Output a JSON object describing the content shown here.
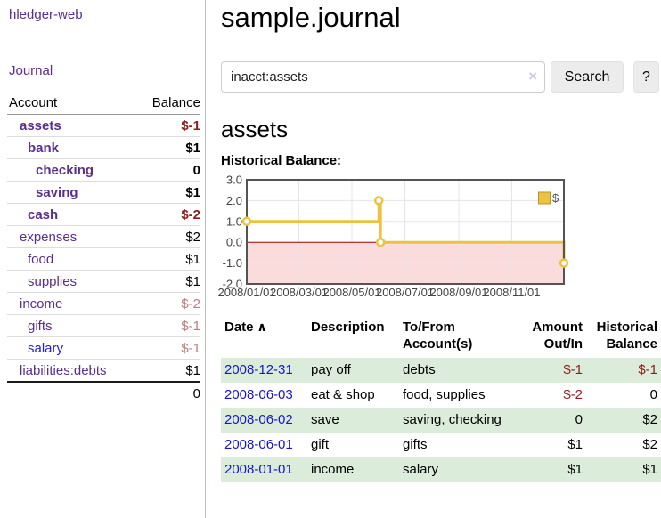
{
  "colors": {
    "link_purple": "#5b2d90",
    "link_blue": "#2222e0",
    "negative_dark": "#8b1e1e",
    "negative_light": "#bb7e7e",
    "row_stripe_green": "#dcecdb",
    "date_link_blue": "#1515cc",
    "chart_series_yellow": "#edc240",
    "chart_negative_band_pink": "#fbdcdc",
    "chart_zero_line_red": "#a40000"
  },
  "sidebar": {
    "brand": "hledger-web",
    "nav": [
      {
        "label": "Journal"
      }
    ],
    "accounts_table": {
      "headers": {
        "account": "Account",
        "balance": "Balance"
      },
      "rows": [
        {
          "account": "assets",
          "indent": 1,
          "bold": true,
          "link": "purple",
          "balance": "$-1",
          "balance_style": "neg-dark"
        },
        {
          "account": "bank",
          "indent": 2,
          "bold": true,
          "link": "purple",
          "balance": "$1",
          "balance_style": "plain"
        },
        {
          "account": "checking",
          "indent": 3,
          "bold": true,
          "link": "purple",
          "balance": "0",
          "balance_style": "plain"
        },
        {
          "account": "saving",
          "indent": 3,
          "bold": true,
          "link": "purple",
          "balance": "$1",
          "balance_style": "plain"
        },
        {
          "account": "cash",
          "indent": 2,
          "bold": true,
          "link": "purple",
          "balance": "$-2",
          "balance_style": "neg-dark"
        },
        {
          "account": "expenses",
          "indent": 1,
          "bold": false,
          "link": "purple",
          "balance": "$2",
          "balance_style": "plain"
        },
        {
          "account": "food",
          "indent": 2,
          "bold": false,
          "link": "purple",
          "balance": "$1",
          "balance_style": "plain"
        },
        {
          "account": "supplies",
          "indent": 2,
          "bold": false,
          "link": "purple",
          "balance": "$1",
          "balance_style": "plain"
        },
        {
          "account": "income",
          "indent": 1,
          "bold": false,
          "link": "purple",
          "balance": "$-2",
          "balance_style": "neg-light"
        },
        {
          "account": "gifts",
          "indent": 2,
          "bold": false,
          "link": "purple",
          "balance": "$-1",
          "balance_style": "neg-light"
        },
        {
          "account": "salary",
          "indent": 2,
          "bold": false,
          "link": "blue",
          "balance": "$-1",
          "balance_style": "neg-light"
        },
        {
          "account": "liabilities:debts",
          "indent": 1,
          "bold": false,
          "link": "purple",
          "balance": "$1",
          "balance_style": "plain"
        }
      ],
      "total": "0"
    }
  },
  "header": {
    "title": "sample.journal"
  },
  "search": {
    "value": "inacct:assets",
    "clear_icon": "×",
    "button_label": "Search",
    "help_label": "?"
  },
  "account_page": {
    "title": "assets",
    "chart_label": "Historical Balance:"
  },
  "chart_data": {
    "type": "line",
    "step": true,
    "title": "Historical Balance:",
    "series": [
      {
        "name": "$",
        "color": "#edc240",
        "points": [
          {
            "date": "2008-01-01",
            "value": 1.0
          },
          {
            "date": "2008-06-01",
            "value": 2.0
          },
          {
            "date": "2008-06-03",
            "value": 0.0
          },
          {
            "date": "2008-12-31",
            "value": -1.0
          }
        ]
      }
    ],
    "xrange": [
      "2008-01-01",
      "2008-12-31"
    ],
    "ylim": [
      -2.0,
      3.0
    ],
    "yticks": [
      3.0,
      2.0,
      1.0,
      0.0,
      -1.0,
      -2.0
    ],
    "xticks": [
      {
        "date": "2008-01-01",
        "label": "2008/01/01"
      },
      {
        "date": "2008-03-01",
        "label": "2008/03/01"
      },
      {
        "date": "2008-05-01",
        "label": "2008/05/01"
      },
      {
        "date": "2008-07-01",
        "label": "2008/07/01"
      },
      {
        "date": "2008-09-01",
        "label": "2008/09/01"
      },
      {
        "date": "2008-11-01",
        "label": "2008/11/01"
      }
    ],
    "legend": {
      "label": "$",
      "position": "top-right"
    },
    "grid": true,
    "negative_band": {
      "from": 0,
      "to": -2,
      "color": "#fbdcdc"
    },
    "zero_line_color": "#a40000"
  },
  "register": {
    "sort_icon": "∧",
    "columns": [
      {
        "line1": "Date",
        "line2": "",
        "align": "left",
        "sorted": true
      },
      {
        "line1": "Description",
        "line2": "",
        "align": "left",
        "sorted": false
      },
      {
        "line1": "To/From",
        "line2": "Account(s)",
        "align": "left",
        "sorted": false
      },
      {
        "line1": "Amount",
        "line2": "Out/In",
        "align": "right",
        "sorted": false
      },
      {
        "line1": "Historical",
        "line2": "Balance",
        "align": "right",
        "sorted": false
      }
    ],
    "rows": [
      {
        "date": "2008-12-31",
        "description": "pay off",
        "accounts": "debts",
        "amount": "$-1",
        "balance": "$-1"
      },
      {
        "date": "2008-06-03",
        "description": "eat & shop",
        "accounts": "food, supplies",
        "amount": "$-2",
        "balance": "0"
      },
      {
        "date": "2008-06-02",
        "description": "save",
        "accounts": "saving, checking",
        "amount": "0",
        "balance": "$2"
      },
      {
        "date": "2008-06-01",
        "description": "gift",
        "accounts": "gifts",
        "amount": "$1",
        "balance": "$2"
      },
      {
        "date": "2008-01-01",
        "description": "income",
        "accounts": "salary",
        "amount": "$1",
        "balance": "$1"
      }
    ]
  }
}
